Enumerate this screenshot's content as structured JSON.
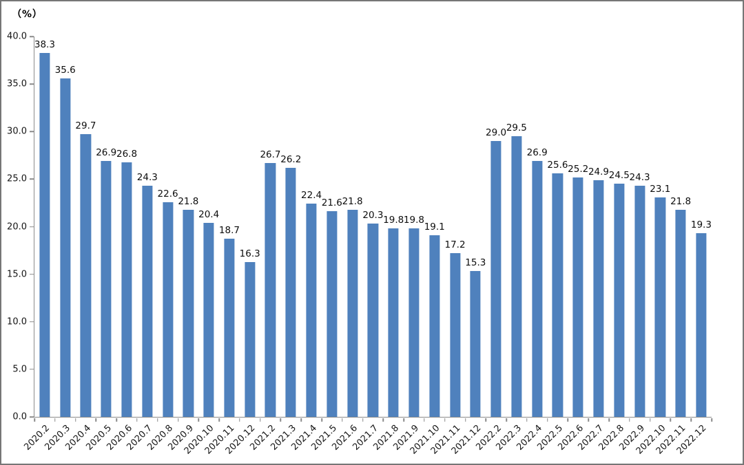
{
  "chart_data": {
    "type": "bar",
    "title": "",
    "unit_label": "（%）",
    "ylabel": "%",
    "xlabel": "",
    "ylim": [
      0,
      40
    ],
    "ytick_step": 5,
    "grid": "off",
    "legend": "none",
    "bar_color": "#4f81bd",
    "axis_color": "#8a8a8a",
    "categories": [
      "2020.2",
      "2020.3",
      "2020.4",
      "2020.5",
      "2020.6",
      "2020.7",
      "2020.8",
      "2020.9",
      "2020.10",
      "2020.11",
      "2020.12",
      "2021.2",
      "2021.3",
      "2021.4",
      "2021.5",
      "2021.6",
      "2021.7",
      "2021.8",
      "2021.9",
      "2021.10",
      "2021.11",
      "2021.12",
      "2022.2",
      "2022.3",
      "2022.4",
      "2022.5",
      "2022.6",
      "2022.7",
      "2022.8",
      "2022.9",
      "2022.10",
      "2022.11",
      "2022.12"
    ],
    "values": [
      38.3,
      35.6,
      29.7,
      26.9,
      26.8,
      24.3,
      22.6,
      21.8,
      20.4,
      18.7,
      16.3,
      26.7,
      26.2,
      22.4,
      21.6,
      21.8,
      20.3,
      19.8,
      19.8,
      19.1,
      17.2,
      15.3,
      29.0,
      29.5,
      26.9,
      25.6,
      25.2,
      24.9,
      24.5,
      24.3,
      23.1,
      21.8,
      19.3
    ]
  }
}
